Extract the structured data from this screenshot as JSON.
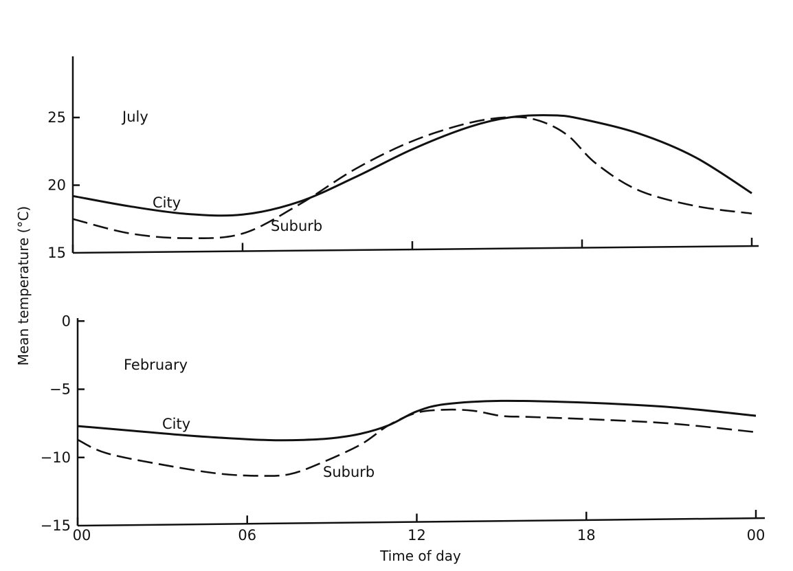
{
  "chart_data": [
    {
      "type": "line",
      "panel_label": "July",
      "x_unit": "hour of day",
      "ylim": [
        15,
        29
      ],
      "yticks": [
        15,
        20,
        25
      ],
      "xlim": [
        0,
        24
      ],
      "xticks": [
        0,
        6,
        12,
        18,
        24
      ],
      "series": [
        {
          "name": "City",
          "style": "solid",
          "x": [
            0,
            2,
            4,
            6,
            8,
            10,
            12,
            14,
            15.5,
            17,
            18,
            20,
            22,
            24
          ],
          "y": [
            19.2,
            18.4,
            17.8,
            17.7,
            18.6,
            20.4,
            22.4,
            24.0,
            24.7,
            24.8,
            24.5,
            23.4,
            21.6,
            18.9
          ]
        },
        {
          "name": "Suburb",
          "style": "dashed",
          "x": [
            0,
            2,
            4,
            6,
            8,
            10,
            12,
            14,
            15.5,
            16.5,
            17.5,
            18.5,
            20,
            22,
            24
          ],
          "y": [
            17.5,
            16.4,
            16.0,
            16.3,
            18.4,
            21.0,
            23.0,
            24.3,
            24.7,
            24.4,
            23.3,
            21.2,
            19.2,
            18.0,
            17.4
          ]
        }
      ]
    },
    {
      "type": "line",
      "panel_label": "February",
      "x_unit": "hour of day",
      "ylim": [
        -15,
        0
      ],
      "yticks": [
        -15,
        -10,
        -5,
        0
      ],
      "xlim": [
        0,
        24
      ],
      "xticks": [
        0,
        6,
        12,
        18,
        24
      ],
      "series": [
        {
          "name": "City",
          "style": "solid",
          "x": [
            0,
            2,
            4,
            6,
            7,
            8,
            9,
            10,
            11,
            12,
            13,
            15,
            18,
            21,
            24
          ],
          "y": [
            -7.7,
            -8.1,
            -8.5,
            -8.8,
            -8.9,
            -8.9,
            -8.8,
            -8.5,
            -7.9,
            -6.9,
            -6.4,
            -6.2,
            -6.4,
            -6.8,
            -7.5
          ]
        },
        {
          "name": "Suburb",
          "style": "dashed",
          "x": [
            0,
            1,
            3,
            5,
            6.5,
            7.5,
            8.5,
            10,
            11,
            12,
            13,
            14,
            15,
            16,
            18,
            21,
            24
          ],
          "y": [
            -8.7,
            -9.7,
            -10.6,
            -11.3,
            -11.5,
            -11.4,
            -10.7,
            -9.3,
            -7.9,
            -7.0,
            -6.8,
            -6.9,
            -7.3,
            -7.4,
            -7.6,
            -8.0,
            -8.7
          ]
        }
      ]
    }
  ],
  "axes": {
    "ylabel": "Mean temperature (°C)",
    "xlabel": "Time of day",
    "xtick_labels": [
      "00",
      "06",
      "12",
      "18",
      "00"
    ]
  },
  "labels": {
    "july_city": "City",
    "july_suburb": "Suburb",
    "feb_city": "City",
    "feb_suburb": "Suburb"
  }
}
